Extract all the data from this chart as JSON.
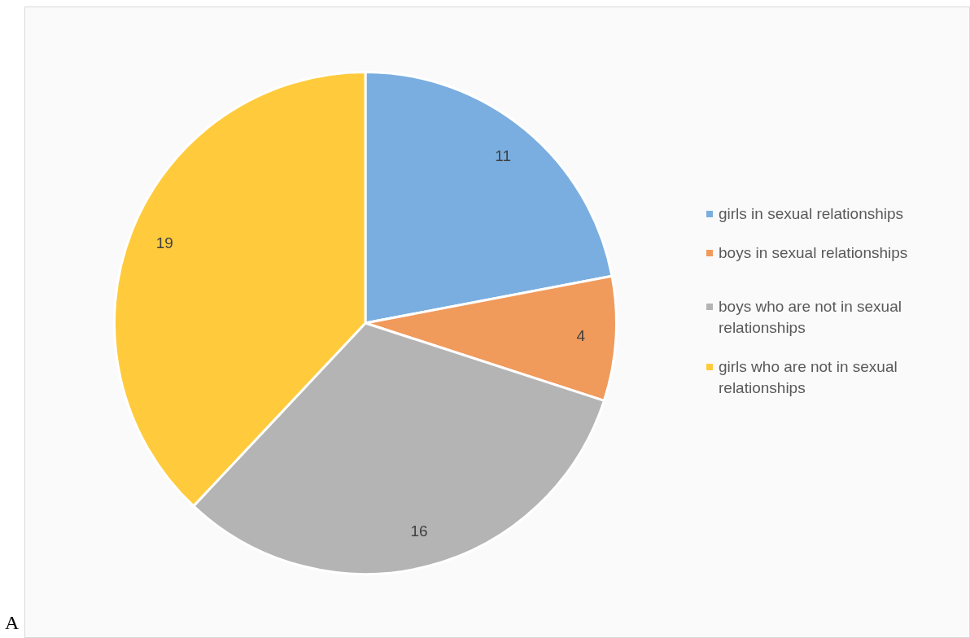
{
  "chart_data": {
    "type": "pie",
    "categories": [
      "girls in sexual relationships",
      "boys in sexual  relationships",
      "boys who are not in sexual relationships",
      "girls who are not in sexual relationships"
    ],
    "values": [
      11,
      4,
      16,
      19
    ],
    "colors": [
      "#7aaee0",
      "#f09a5c",
      "#b4b4b4",
      "#ffcb3d"
    ],
    "data_labels": true,
    "legend": "right",
    "annotations": [
      "A"
    ]
  }
}
